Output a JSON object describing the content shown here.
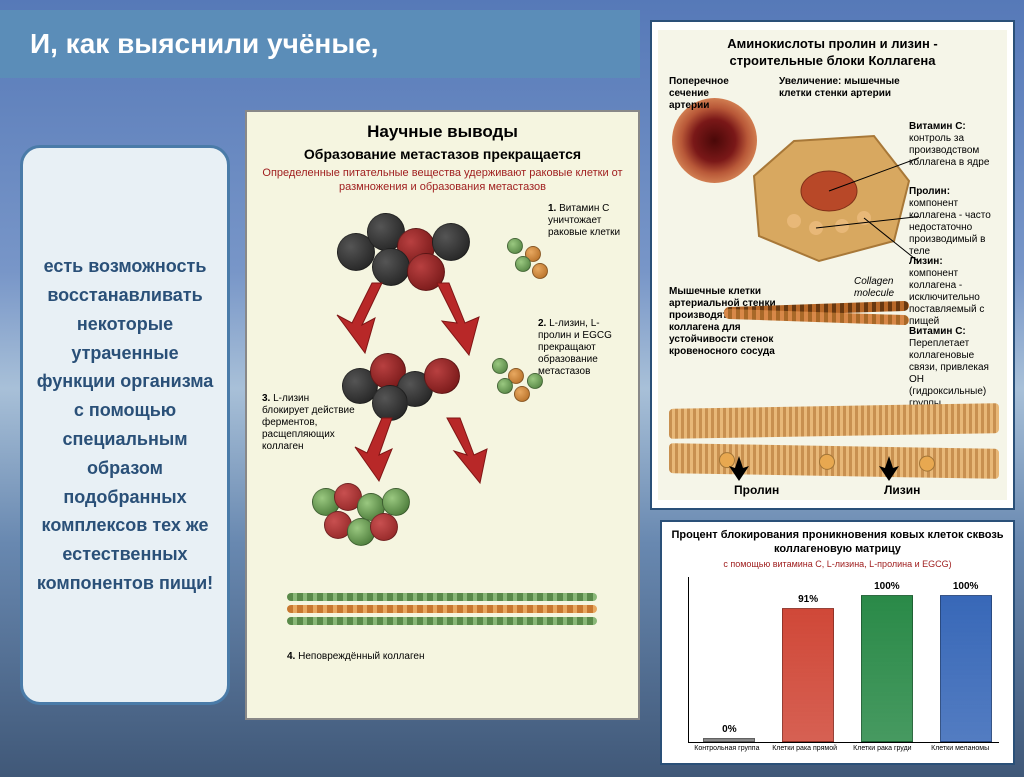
{
  "title": "И, как выяснили учёные,",
  "textbox": "есть возможность восстанавливать некоторые утраченные функции организма с помощью специальным образом подобранных комплексов тех же естественных компонентов пищи!",
  "center": {
    "title": "Научные выводы",
    "subtitle": "Образование метастазов прекращается",
    "red_text": "Определенные питательные вещества удерживают раковые клетки от размножения и образования метастазов",
    "label1_num": "1.",
    "label1": "Витамин С уничтожает раковые клетки",
    "label2_num": "2.",
    "label2": "L-лизин, L-пролин и EGCG прекращают образование метастазов",
    "label3_num": "3.",
    "label3": "L-лизин блокирует действие ферментов, расщепляющих коллаген",
    "label4_num": "4.",
    "label4": "Неповреждённый коллаген",
    "colors": {
      "dark_cell": "#2a2a2a",
      "red_cell": "#8a2020",
      "green_ball": "#5a8a4a",
      "orange_ball": "#c87830",
      "arrow": "#b82828"
    }
  },
  "right1": {
    "title_l1": "Аминокислоты пролин и лизин -",
    "title_l2": "строительные блоки Коллагена",
    "artery_label": "Поперечное сечение артерии",
    "zoom_label": "Увеличение: мышечные клетки стенки артерии",
    "vitc_title": "Витамин С:",
    "vitc_text": "контроль за производством коллагена в ядре",
    "proline_title": "Пролин:",
    "proline_text": "компонент коллагена - часто недостаточно производимый в теле",
    "lysine_title": "Лизин:",
    "lysine_text": "компонент коллагена - исключительно поставляемый с пищей",
    "vitc2_title": "Витамин С:",
    "vitc2_text": "Переплетает коллагеновые связи, привлекая ОН (гидроксильные) группы",
    "muscle_text": "Мышечные клетки артериальной стенки производят волокна коллагена для устойчивости стенок кровеносного сосуда",
    "collagen_label": "Collagen molecule",
    "proline_bottom": "Пролин",
    "lysine_bottom": "Лизин",
    "colors": {
      "artery_outer": "#a84830",
      "artery_inner": "#601010",
      "cell_body": "#d8a860",
      "nucleus": "#b84828"
    }
  },
  "chart": {
    "title": "Процент блокирования проникновения ковых клеток сквозь коллагеновую матрицу",
    "subtitle": "с помощью витамина С, L-лизина, L-пролина и EGCG)",
    "categories": [
      "Контрольная группа",
      "Клетки рака прямой",
      "Клетки рака груди",
      "Клетки меланомы"
    ],
    "values": [
      0,
      91,
      100,
      100
    ],
    "bar_colors": [
      "#808080",
      "#d04838",
      "#2a8a48",
      "#3868b8"
    ],
    "ymax": 100
  }
}
